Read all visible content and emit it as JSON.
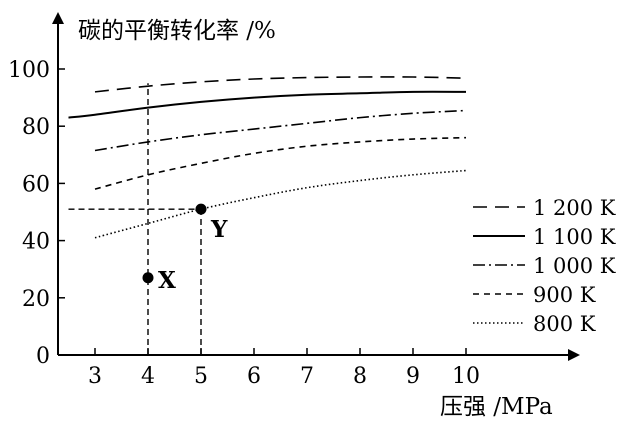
{
  "chart_data": {
    "type": "line",
    "ylabel": "碳的平衡转化率 /%",
    "xlabel": "压强 /MPa",
    "x_ticks": [
      3,
      4,
      5,
      6,
      7,
      8,
      9,
      10
    ],
    "y_ticks": [
      0,
      20,
      40,
      60,
      80,
      100
    ],
    "xlim": [
      2.4,
      11.8
    ],
    "ylim": [
      0,
      108
    ],
    "grid": false,
    "legend_position": "right",
    "series": [
      {
        "name": "1 200 K",
        "dash": "long-dash",
        "x": [
          3,
          4,
          5,
          6,
          7,
          8,
          9,
          10
        ],
        "y": [
          92,
          94,
          95.5,
          96.5,
          97,
          97.2,
          97.2,
          96.8
        ]
      },
      {
        "name": "1 100 K",
        "dash": "solid",
        "x": [
          2.5,
          3,
          4,
          5,
          6,
          7,
          8,
          9,
          10
        ],
        "y": [
          83,
          84,
          86.5,
          88.5,
          90,
          91,
          91.5,
          92,
          92
        ]
      },
      {
        "name": "1 000 K",
        "dash": "dash-dot",
        "x": [
          3,
          4,
          5,
          6,
          7,
          8,
          9,
          10
        ],
        "y": [
          71.5,
          74.5,
          77,
          79,
          81,
          83,
          84.5,
          85.5
        ]
      },
      {
        "name": "900 K",
        "dash": "short-dash",
        "x": [
          3,
          4,
          5,
          6,
          7,
          8,
          9,
          10
        ],
        "y": [
          58,
          63,
          67,
          70.5,
          73,
          74.5,
          75.5,
          76
        ]
      },
      {
        "name": "800 K",
        "dash": "dotted",
        "x": [
          3,
          4,
          5,
          6,
          7,
          8,
          9,
          10
        ],
        "y": [
          41,
          46,
          51,
          55,
          58.5,
          61,
          63,
          64.5
        ]
      }
    ],
    "points": [
      {
        "label": "X",
        "x": 4,
        "y": 27
      },
      {
        "label": "Y",
        "x": 5,
        "y": 51
      }
    ],
    "guides": [
      {
        "from": [
          4,
          0
        ],
        "to": [
          4,
          95
        ]
      },
      {
        "from": [
          5,
          0
        ],
        "to": [
          5,
          51
        ]
      },
      {
        "from": [
          2.5,
          51
        ],
        "to": [
          5,
          51
        ]
      }
    ]
  }
}
